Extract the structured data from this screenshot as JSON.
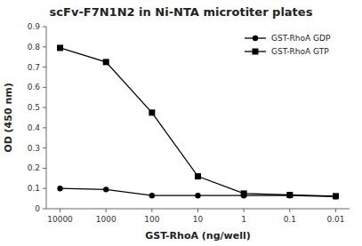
{
  "chart_data": {
    "type": "line",
    "title": "scFv-F7N1N2 in Ni-NTA microtiter plates",
    "xlabel": "GST-RhoA (ng/well)",
    "ylabel": "OD (450 nm)",
    "x": [
      10000,
      1000,
      100,
      10,
      1,
      0.1,
      0.01
    ],
    "series": [
      {
        "name": "GST-RhoA GDP",
        "color": "#000000",
        "marker": "circle",
        "values": [
          0.1,
          0.095,
          0.065,
          0.065,
          0.065,
          0.065,
          0.06
        ]
      },
      {
        "name": "GST-RhoA GTP",
        "color": "#000000",
        "marker": "square",
        "values": [
          0.795,
          0.725,
          0.475,
          0.16,
          0.075,
          0.068,
          0.062
        ]
      }
    ],
    "log": "x",
    "xlim": [
      20000,
      0.005
    ],
    "xticks": [
      10000,
      1000,
      100,
      10,
      1,
      0.1,
      0.01
    ],
    "ylim": [
      0,
      0.9
    ],
    "yticks": [
      0,
      0.1,
      0.2,
      0.3,
      0.4,
      0.5,
      0.6,
      0.7,
      0.8,
      0.9
    ],
    "legend": "upper right"
  }
}
